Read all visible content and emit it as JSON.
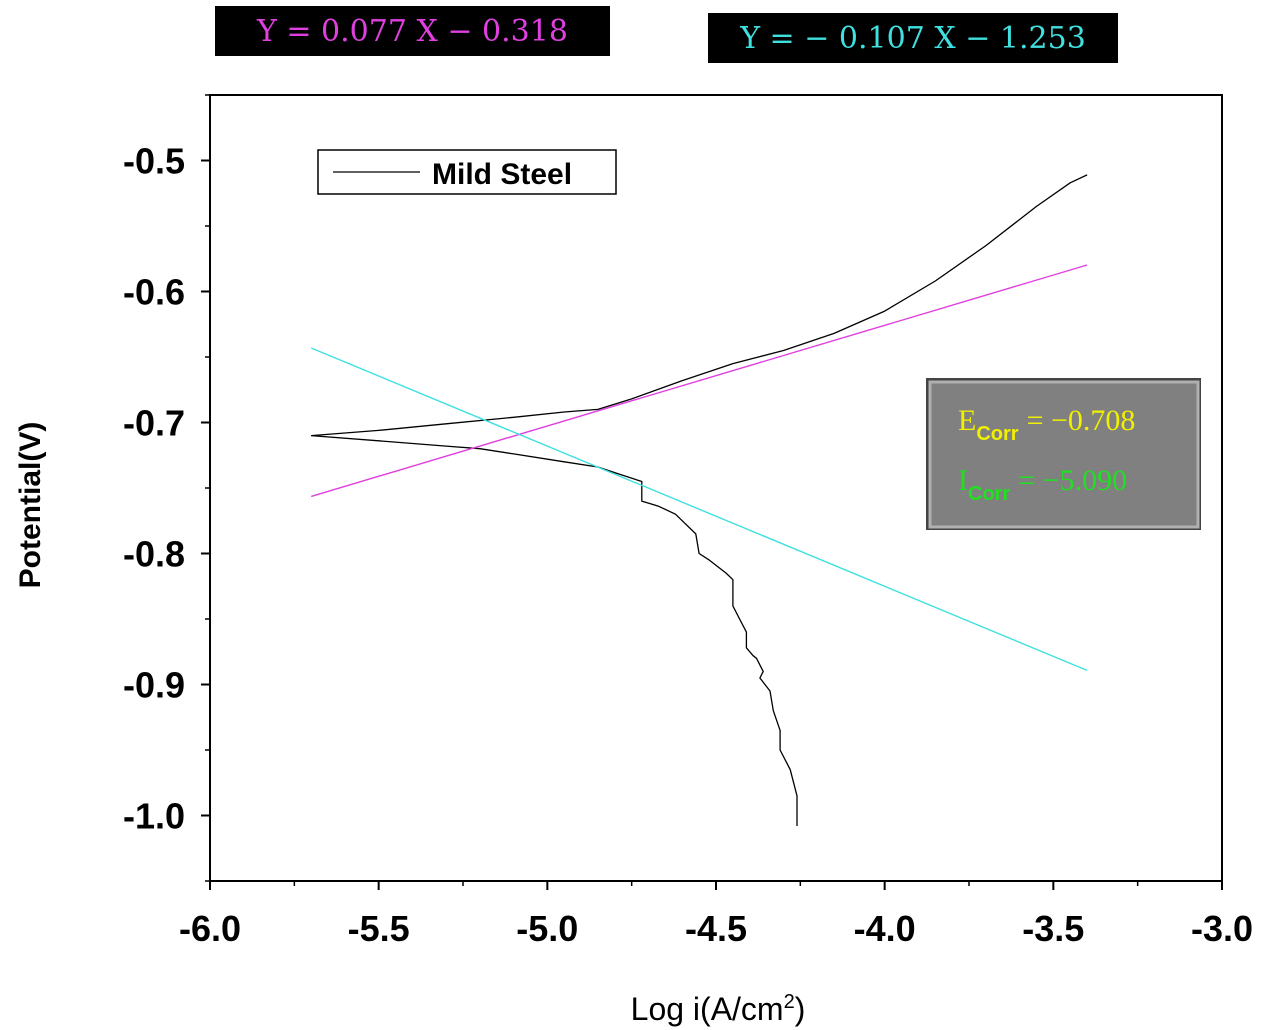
{
  "equations": {
    "anodic": {
      "text": "Y = 0.077 X − 0.318",
      "color": "#e040e0"
    },
    "cathodic": {
      "text": "Y = − 0.107 X − 1.253",
      "color": "#40e0e0"
    }
  },
  "info_box": {
    "ecorr": {
      "symbol": "E",
      "subscript": "Corr",
      "value": "= −0.708",
      "color": "#f0f000"
    },
    "icorr": {
      "symbol": "I",
      "subscript": "Corr",
      "value": "= −5.090",
      "color": "#20e020"
    },
    "background": "#808080"
  },
  "chart_data": {
    "type": "line",
    "xlabel": "Log i(A/cm",
    "xlabel_sup": "2",
    "xlabel_close": ")",
    "ylabel": "Potential(V)",
    "xlim": [
      -6.0,
      -3.0
    ],
    "ylim": [
      -1.05,
      -0.45
    ],
    "x_ticks": [
      "-6.0",
      "-5.5",
      "-5.0",
      "-4.5",
      "-4.0",
      "-3.5",
      "-3.0"
    ],
    "x_tick_values": [
      -6.0,
      -5.5,
      -5.0,
      -4.5,
      -4.0,
      -3.5,
      -3.0
    ],
    "y_ticks": [
      "-0.5",
      "-0.6",
      "-0.7",
      "-0.8",
      "-0.9",
      "-1.0"
    ],
    "y_tick_values": [
      -0.5,
      -0.6,
      -0.7,
      -0.8,
      -0.9,
      -1.0
    ],
    "legend": {
      "entries": [
        "Mild Steel"
      ],
      "placement": "top-left"
    },
    "series": [
      {
        "name": "Mild Steel",
        "color": "#000000",
        "x": [
          -5.7,
          -5.5,
          -5.3,
          -5.1,
          -4.95,
          -4.85,
          -4.75,
          -4.6,
          -4.45,
          -4.3,
          -4.15,
          -4.0,
          -3.85,
          -3.7,
          -3.55,
          -3.45,
          -3.4
        ],
        "y": [
          -0.71,
          -0.706,
          -0.701,
          -0.696,
          -0.692,
          -0.69,
          -0.682,
          -0.668,
          -0.655,
          -0.645,
          -0.632,
          -0.615,
          -0.592,
          -0.565,
          -0.535,
          -0.517,
          -0.511
        ]
      },
      {
        "name": "",
        "color": "#000000",
        "x": [
          -5.7,
          -5.5,
          -5.3,
          -5.2,
          -5.1,
          -4.95,
          -4.85,
          -4.78,
          -4.72,
          -4.72,
          -4.67,
          -4.62,
          -4.6,
          -4.56,
          -4.55,
          -4.52,
          -4.47,
          -4.45,
          -4.45,
          -4.43,
          -4.41,
          -4.41,
          -4.39,
          -4.38,
          -4.36,
          -4.37,
          -4.34,
          -4.33,
          -4.31,
          -4.31,
          -4.28,
          -4.27,
          -4.26,
          -4.26
        ],
        "y": [
          -0.71,
          -0.714,
          -0.718,
          -0.72,
          -0.724,
          -0.73,
          -0.734,
          -0.74,
          -0.745,
          -0.76,
          -0.764,
          -0.77,
          -0.775,
          -0.785,
          -0.8,
          -0.805,
          -0.815,
          -0.82,
          -0.84,
          -0.85,
          -0.86,
          -0.872,
          -0.878,
          -0.88,
          -0.89,
          -0.895,
          -0.905,
          -0.92,
          -0.935,
          -0.95,
          -0.965,
          -0.975,
          -0.985,
          -1.008
        ]
      },
      {
        "name": "",
        "color": "#e040e0",
        "x": [
          -5.7,
          -3.4
        ],
        "y": [
          -0.7564,
          -0.5798
        ]
      },
      {
        "name": "",
        "color": "#40e0e0",
        "x": [
          -5.7,
          -3.4
        ],
        "y": [
          -0.6431,
          -0.8892
        ]
      }
    ]
  }
}
